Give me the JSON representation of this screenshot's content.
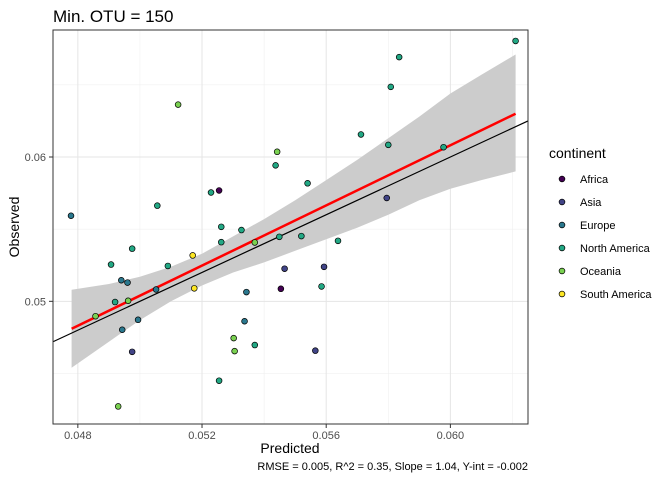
{
  "chart_data": {
    "type": "scatter",
    "title": "Min. OTU = 150",
    "xlabel": "Predicted",
    "ylabel": "Observed",
    "caption": "RMSE = 0.005, R^2 = 0.35, Slope = 1.04, Y-int = -0.002",
    "xlim": [
      0.0472,
      0.0625
    ],
    "ylim": [
      0.0415,
      0.0688
    ],
    "x_ticks": [
      0.048,
      0.052,
      0.056,
      0.06
    ],
    "x_tick_labels": [
      "0.048",
      "0.052",
      "0.056",
      "0.060"
    ],
    "y_ticks": [
      0.05,
      0.06
    ],
    "y_tick_labels": [
      "0.05",
      "0.06"
    ],
    "grid": true,
    "legend": {
      "title": "continent",
      "placement": "right",
      "entries": [
        {
          "name": "Africa",
          "color": "#440154"
        },
        {
          "name": "Asia",
          "color": "#414487"
        },
        {
          "name": "Europe",
          "color": "#2a788e"
        },
        {
          "name": "North America",
          "color": "#22a884"
        },
        {
          "name": "Oceania",
          "color": "#7ad151"
        },
        {
          "name": "South America",
          "color": "#fde725"
        }
      ]
    },
    "identity_line": {
      "slope": 1,
      "intercept": 0,
      "color": "#000000"
    },
    "regression": {
      "color": "#ff0000",
      "band_color": "#cccccc",
      "line": [
        {
          "x": 0.0478,
          "y": 0.0481
        },
        {
          "x": 0.0621,
          "y": 0.063
        }
      ],
      "band": [
        {
          "x": 0.0478,
          "lo": 0.0454,
          "hi": 0.0508
        },
        {
          "x": 0.049,
          "lo": 0.0472,
          "hi": 0.0512
        },
        {
          "x": 0.05,
          "lo": 0.0487,
          "hi": 0.0517
        },
        {
          "x": 0.051,
          "lo": 0.05,
          "hi": 0.0524
        },
        {
          "x": 0.052,
          "lo": 0.0511,
          "hi": 0.0533
        },
        {
          "x": 0.053,
          "lo": 0.052,
          "hi": 0.0545
        },
        {
          "x": 0.054,
          "lo": 0.0527,
          "hi": 0.0557
        },
        {
          "x": 0.055,
          "lo": 0.0535,
          "hi": 0.057
        },
        {
          "x": 0.056,
          "lo": 0.0543,
          "hi": 0.0584
        },
        {
          "x": 0.057,
          "lo": 0.0551,
          "hi": 0.0598
        },
        {
          "x": 0.058,
          "lo": 0.056,
          "hi": 0.0613
        },
        {
          "x": 0.059,
          "lo": 0.057,
          "hi": 0.0628
        },
        {
          "x": 0.06,
          "lo": 0.0578,
          "hi": 0.0644
        },
        {
          "x": 0.061,
          "lo": 0.0584,
          "hi": 0.0657
        },
        {
          "x": 0.0621,
          "lo": 0.059,
          "hi": 0.0671
        }
      ]
    },
    "points": [
      {
        "x": 0.04778,
        "y": 0.05593,
        "group": "Europe"
      },
      {
        "x": 0.04857,
        "y": 0.04897,
        "group": "Oceania"
      },
      {
        "x": 0.04907,
        "y": 0.05255,
        "group": "North America"
      },
      {
        "x": 0.0492,
        "y": 0.04995,
        "group": "North America"
      },
      {
        "x": 0.0493,
        "y": 0.04272,
        "group": "Oceania"
      },
      {
        "x": 0.0494,
        "y": 0.05146,
        "group": "Europe"
      },
      {
        "x": 0.04943,
        "y": 0.04803,
        "group": "Europe"
      },
      {
        "x": 0.0496,
        "y": 0.0513,
        "group": "Europe"
      },
      {
        "x": 0.04962,
        "y": 0.05004,
        "group": "Oceania"
      },
      {
        "x": 0.04975,
        "y": 0.05365,
        "group": "North America"
      },
      {
        "x": 0.04975,
        "y": 0.0465,
        "group": "Asia"
      },
      {
        "x": 0.04994,
        "y": 0.04872,
        "group": "Europe"
      },
      {
        "x": 0.05052,
        "y": 0.05082,
        "group": "Europe"
      },
      {
        "x": 0.05056,
        "y": 0.05663,
        "group": "North America"
      },
      {
        "x": 0.0509,
        "y": 0.05245,
        "group": "North America"
      },
      {
        "x": 0.05123,
        "y": 0.06363,
        "group": "Oceania"
      },
      {
        "x": 0.0517,
        "y": 0.05318,
        "group": "South America"
      },
      {
        "x": 0.05175,
        "y": 0.0509,
        "group": "South America"
      },
      {
        "x": 0.05229,
        "y": 0.05754,
        "group": "North America"
      },
      {
        "x": 0.05255,
        "y": 0.05768,
        "group": "Africa"
      },
      {
        "x": 0.05255,
        "y": 0.0445,
        "group": "North America"
      },
      {
        "x": 0.05262,
        "y": 0.05516,
        "group": "North America"
      },
      {
        "x": 0.05262,
        "y": 0.0541,
        "group": "North America"
      },
      {
        "x": 0.05302,
        "y": 0.04745,
        "group": "Oceania"
      },
      {
        "x": 0.05305,
        "y": 0.04655,
        "group": "Oceania"
      },
      {
        "x": 0.05327,
        "y": 0.05494,
        "group": "North America"
      },
      {
        "x": 0.05337,
        "y": 0.04862,
        "group": "Europe"
      },
      {
        "x": 0.05343,
        "y": 0.05064,
        "group": "Europe"
      },
      {
        "x": 0.0537,
        "y": 0.04697,
        "group": "North America"
      },
      {
        "x": 0.0537,
        "y": 0.05408,
        "group": "Oceania"
      },
      {
        "x": 0.05437,
        "y": 0.05942,
        "group": "North America"
      },
      {
        "x": 0.05442,
        "y": 0.06036,
        "group": "Oceania"
      },
      {
        "x": 0.05449,
        "y": 0.05447,
        "group": "North America"
      },
      {
        "x": 0.05454,
        "y": 0.05087,
        "group": "Africa"
      },
      {
        "x": 0.05466,
        "y": 0.05226,
        "group": "Asia"
      },
      {
        "x": 0.0552,
        "y": 0.05452,
        "group": "North America"
      },
      {
        "x": 0.0554,
        "y": 0.05818,
        "group": "North America"
      },
      {
        "x": 0.05565,
        "y": 0.04658,
        "group": "Asia"
      },
      {
        "x": 0.05585,
        "y": 0.05103,
        "group": "North America"
      },
      {
        "x": 0.05593,
        "y": 0.05239,
        "group": "Asia"
      },
      {
        "x": 0.05638,
        "y": 0.05419,
        "group": "North America"
      },
      {
        "x": 0.05712,
        "y": 0.06156,
        "group": "North America"
      },
      {
        "x": 0.05795,
        "y": 0.05716,
        "group": "Asia"
      },
      {
        "x": 0.058,
        "y": 0.06084,
        "group": "North America"
      },
      {
        "x": 0.05808,
        "y": 0.06486,
        "group": "North America"
      },
      {
        "x": 0.05835,
        "y": 0.06692,
        "group": "North America"
      },
      {
        "x": 0.05978,
        "y": 0.06068,
        "group": "North America"
      },
      {
        "x": 0.0621,
        "y": 0.06804,
        "group": "North America"
      }
    ]
  }
}
